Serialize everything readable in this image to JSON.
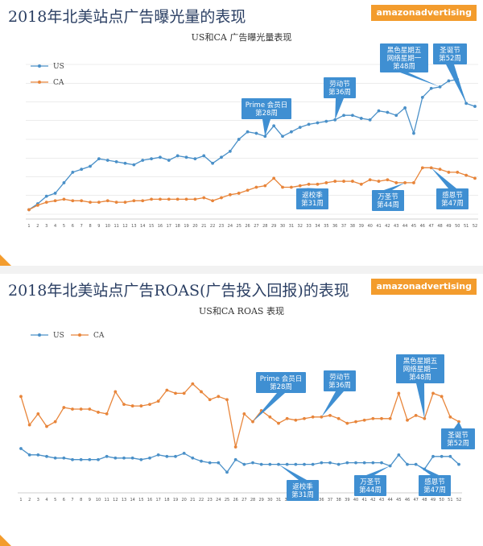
{
  "slides": [
    {
      "title": "2018年北美站点广告曝光量的表现",
      "brand": "amazonadvertising",
      "chart_data": {
        "type": "line",
        "title": "US和CA  广告曝光量表现",
        "legend_position": "top-left",
        "legend_style": "vertical",
        "y_axis_labels": false,
        "grid": true,
        "x": [
          1,
          2,
          3,
          4,
          5,
          6,
          7,
          8,
          9,
          10,
          11,
          12,
          13,
          14,
          15,
          16,
          17,
          18,
          19,
          20,
          21,
          22,
          23,
          24,
          25,
          26,
          27,
          28,
          29,
          30,
          31,
          32,
          33,
          34,
          35,
          36,
          37,
          38,
          39,
          40,
          41,
          42,
          43,
          44,
          45,
          46,
          47,
          48,
          49,
          50,
          51,
          52
        ],
        "ylim": [
          0,
          100
        ],
        "series": [
          {
            "name": "US",
            "color": "#4a90c8",
            "values": [
              3,
              7,
              12,
              14,
              21,
              28,
              30,
              32,
              37,
              36,
              35,
              34,
              33,
              36,
              37,
              38,
              36,
              39,
              38,
              37,
              39,
              34,
              38,
              42,
              50,
              55,
              54,
              52,
              59,
              52,
              55,
              58,
              60,
              61,
              62,
              63,
              66,
              66,
              64,
              63,
              69,
              68,
              66,
              71,
              54,
              78,
              84,
              85,
              89,
              90,
              74,
              72
            ]
          },
          {
            "name": "CA",
            "color": "#e8853a",
            "values": [
              3,
              6,
              8,
              9,
              10,
              9,
              9,
              8,
              8,
              9,
              8,
              8,
              9,
              9,
              10,
              10,
              10,
              10,
              10,
              10,
              11,
              9,
              11,
              13,
              14,
              16,
              18,
              19,
              24,
              18,
              18,
              19,
              20,
              20,
              21,
              22,
              22,
              22,
              20,
              23,
              22,
              23,
              21,
              21,
              21,
              31,
              31,
              30,
              28,
              28,
              26,
              24
            ]
          }
        ],
        "annotations": [
          {
            "text": [
              "Prime 会员日",
              "第28周"
            ],
            "week": 28,
            "series": "US"
          },
          {
            "text": [
              "劳动节",
              "第36周"
            ],
            "week": 36,
            "series": "US"
          },
          {
            "text": [
              "黑色星期五",
              "网络星期一",
              "第48周"
            ],
            "week": 48,
            "series": "US"
          },
          {
            "text": [
              "圣诞节",
              "第52周"
            ],
            "week": 51,
            "series": "US"
          },
          {
            "text": [
              "返校季",
              "第31周"
            ],
            "week": 31,
            "series": "CA"
          },
          {
            "text": [
              "万圣节",
              "第44周"
            ],
            "week": 44,
            "series": "CA"
          },
          {
            "text": [
              "感恩节",
              "第47周"
            ],
            "week": 47,
            "series": "CA"
          }
        ]
      }
    },
    {
      "title": "2018年北美站点广告ROAS(广告投入回报)的表现",
      "brand": "amazonadvertising",
      "chart_data": {
        "type": "line",
        "title": "US和CA ROAS 表现",
        "legend_position": "top-left",
        "legend_style": "horizontal",
        "y_axis_labels": false,
        "grid": false,
        "x": [
          1,
          2,
          3,
          4,
          5,
          6,
          7,
          8,
          9,
          10,
          11,
          12,
          13,
          14,
          15,
          16,
          17,
          18,
          19,
          20,
          21,
          22,
          23,
          24,
          25,
          26,
          27,
          28,
          29,
          30,
          31,
          32,
          33,
          34,
          35,
          36,
          37,
          38,
          39,
          40,
          41,
          42,
          43,
          44,
          45,
          46,
          47,
          48,
          49,
          50,
          51,
          52
        ],
        "ylim": [
          0,
          100
        ],
        "series": [
          {
            "name": "US",
            "color": "#4a90c8",
            "values": [
              25,
              21,
              21,
              20,
              19,
              19,
              18,
              18,
              18,
              18,
              20,
              19,
              19,
              19,
              18,
              19,
              21,
              20,
              20,
              22,
              19,
              17,
              16,
              16,
              10,
              18,
              15,
              16,
              15,
              15,
              15,
              15,
              15,
              15,
              15,
              16,
              16,
              15,
              16,
              16,
              16,
              16,
              16,
              14,
              21,
              15,
              15,
              12,
              20,
              20,
              20,
              15
            ]
          },
          {
            "name": "CA",
            "color": "#e8853a",
            "values": [
              58,
              40,
              47,
              39,
              42,
              51,
              50,
              50,
              50,
              48,
              47,
              61,
              53,
              52,
              52,
              53,
              55,
              62,
              60,
              60,
              66,
              61,
              56,
              58,
              56,
              26,
              47,
              42,
              49,
              45,
              41,
              44,
              43,
              44,
              45,
              45,
              46,
              44,
              41,
              42,
              43,
              44,
              44,
              44,
              60,
              43,
              46,
              44,
              60,
              58,
              45,
              42
            ]
          }
        ],
        "annotations": [
          {
            "text": [
              "Prime 会员日",
              "第28周"
            ],
            "week": 28,
            "series": "CA"
          },
          {
            "text": [
              "劳动节",
              "第36周"
            ],
            "week": 36,
            "series": "CA"
          },
          {
            "text": [
              "黑色星期五",
              "网络星期一",
              "第48周"
            ],
            "week": 48,
            "series": "CA"
          },
          {
            "text": [
              "圣诞节",
              "第52周"
            ],
            "week": 52,
            "series": "CA"
          },
          {
            "text": [
              "返校季",
              "第31周"
            ],
            "week": 31,
            "series": "US"
          },
          {
            "text": [
              "万圣节",
              "第44周"
            ],
            "week": 44,
            "series": "US"
          },
          {
            "text": [
              "感恩节",
              "第47周"
            ],
            "week": 47,
            "series": "US"
          }
        ]
      }
    }
  ]
}
